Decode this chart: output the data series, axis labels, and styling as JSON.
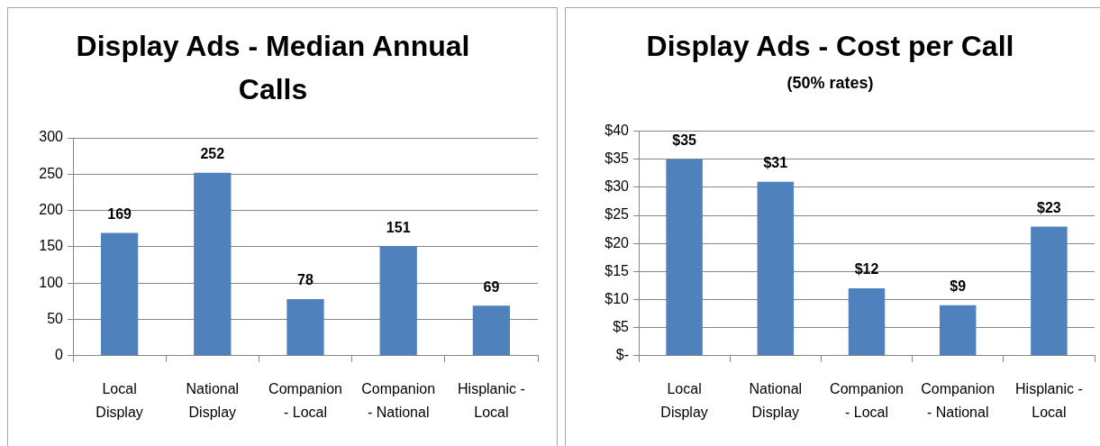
{
  "chart_data": [
    {
      "type": "bar",
      "title": "Display Ads - Median Annual Calls",
      "categories": [
        "Local Display",
        "National Display",
        "Companion - Local",
        "Companion - National",
        "Hisplanic - Local"
      ],
      "values": [
        169,
        252,
        78,
        151,
        69
      ],
      "color": "#4f81bd",
      "ylim": [
        0,
        300
      ],
      "yticks": [
        0,
        50,
        100,
        150,
        200,
        250,
        300
      ],
      "grid": "y",
      "data_labels": true
    },
    {
      "type": "bar",
      "title": "Display Ads - Cost per Call",
      "subtitle": "(50% rates)",
      "categories": [
        "Local Display",
        "National Display",
        "Companion - Local",
        "Companion - National",
        "Hisplanic - Local"
      ],
      "values": [
        35,
        31,
        12,
        9,
        23
      ],
      "color": "#4f81bd",
      "ylim": [
        0,
        40
      ],
      "yticks": [
        {
          "value": 0,
          "label": "$-"
        },
        {
          "value": 5,
          "label": "$5"
        },
        {
          "value": 10,
          "label": "$10"
        },
        {
          "value": 15,
          "label": "$15"
        },
        {
          "value": 20,
          "label": "$20"
        },
        {
          "value": 25,
          "label": "$25"
        },
        {
          "value": 30,
          "label": "$30"
        },
        {
          "value": 35,
          "label": "$35"
        },
        {
          "value": 40,
          "label": "$40"
        }
      ],
      "grid": "y",
      "value_labels": [
        "$35",
        "$31",
        "$12",
        "$9",
        "$23"
      ]
    }
  ]
}
